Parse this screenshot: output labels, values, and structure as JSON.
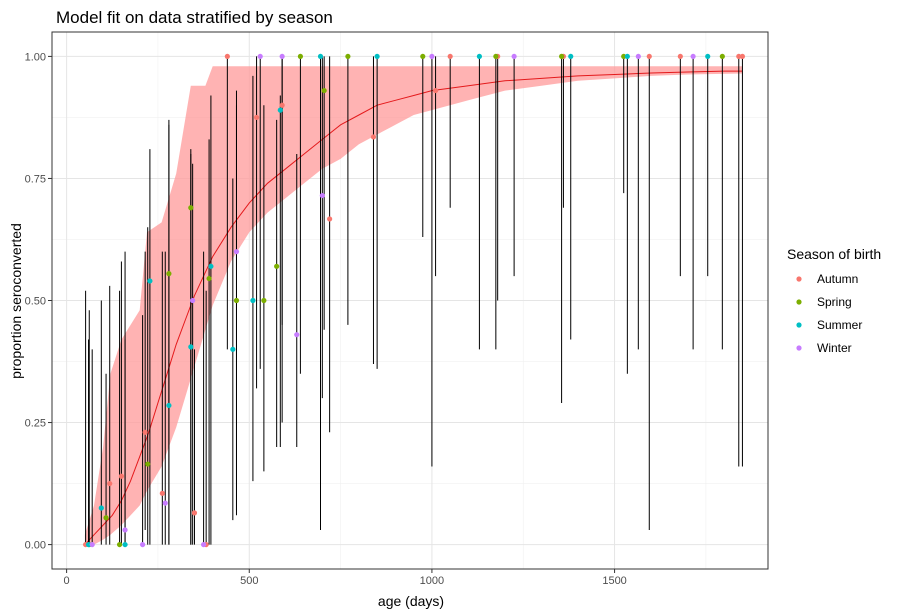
{
  "chart_data": {
    "type": "scatter",
    "title": "Model fit on data stratified by season",
    "xlabel": "age (days)",
    "ylabel": "proportion seroconverted",
    "xlim": [
      -40,
      1920
    ],
    "ylim": [
      -0.05,
      1.05
    ],
    "xticks": [
      0,
      500,
      1000,
      1500
    ],
    "xtick_labels": [
      "0",
      "500",
      "1000",
      "1500"
    ],
    "yticks": [
      0,
      0.25,
      0.5,
      0.75,
      1
    ],
    "ytick_labels": [
      "0.00",
      "0.25",
      "0.50",
      "0.75",
      "1.00"
    ],
    "grid": true,
    "legend": {
      "title": "Season of birth",
      "position": "right",
      "entries": [
        {
          "name": "Autumn",
          "color": "#F8766D"
        },
        {
          "name": "Spring",
          "color": "#7CAE00"
        },
        {
          "name": "Summer",
          "color": "#00BFC4"
        },
        {
          "name": "Winter",
          "color": "#C77CFF"
        }
      ]
    },
    "fit_line": {
      "color": "#E41A1C",
      "x": [
        50,
        75,
        100,
        125,
        150,
        175,
        200,
        225,
        250,
        275,
        300,
        325,
        350,
        375,
        400,
        450,
        500,
        550,
        600,
        650,
        700,
        750,
        800,
        850,
        900,
        950,
        1000,
        1100,
        1200,
        1300,
        1400,
        1500,
        1600,
        1700,
        1800,
        1850
      ],
      "y": [
        0.0,
        0.02,
        0.04,
        0.06,
        0.09,
        0.13,
        0.18,
        0.23,
        0.29,
        0.35,
        0.41,
        0.46,
        0.51,
        0.55,
        0.59,
        0.65,
        0.7,
        0.74,
        0.77,
        0.8,
        0.83,
        0.86,
        0.88,
        0.9,
        0.91,
        0.92,
        0.93,
        0.94,
        0.95,
        0.955,
        0.96,
        0.963,
        0.966,
        0.968,
        0.97,
        0.97
      ]
    },
    "fit_ribbon": {
      "color": "#FF9999",
      "x": [
        50,
        75,
        100,
        120,
        150,
        200,
        220,
        260,
        300,
        340,
        380,
        400,
        450,
        500,
        550,
        600,
        650,
        700,
        750,
        800,
        850,
        900,
        950,
        1000,
        1100,
        1200,
        1300,
        1400,
        1500,
        1600,
        1700,
        1850
      ],
      "lower": [
        0.0,
        0.0,
        0.01,
        0.02,
        0.04,
        0.08,
        0.11,
        0.16,
        0.24,
        0.34,
        0.44,
        0.49,
        0.58,
        0.64,
        0.68,
        0.71,
        0.74,
        0.77,
        0.79,
        0.82,
        0.84,
        0.86,
        0.88,
        0.89,
        0.91,
        0.93,
        0.94,
        0.95,
        0.955,
        0.96,
        0.963,
        0.965
      ],
      "upper": [
        0.02,
        0.08,
        0.2,
        0.35,
        0.42,
        0.48,
        0.64,
        0.66,
        0.76,
        0.94,
        0.94,
        0.98,
        0.98,
        0.98,
        0.98,
        0.98,
        0.98,
        0.98,
        0.98,
        0.98,
        0.98,
        0.98,
        0.98,
        0.98,
        0.98,
        0.98,
        0.98,
        0.98,
        0.98,
        0.98,
        0.98,
        0.98
      ]
    },
    "series": [
      {
        "name": "Autumn",
        "color": "#F8766D",
        "points": [
          {
            "x": 52,
            "y": 0.0,
            "lo": 0.0,
            "hi": 0.52
          },
          {
            "x": 118,
            "y": 0.125,
            "lo": 0.0,
            "hi": 0.53
          },
          {
            "x": 150,
            "y": 0.14,
            "lo": 0.0,
            "hi": 0.58
          },
          {
            "x": 215,
            "y": 0.23,
            "lo": 0.03,
            "hi": 0.6
          },
          {
            "x": 262,
            "y": 0.105,
            "lo": 0.0,
            "hi": 0.6
          },
          {
            "x": 350,
            "y": 0.065,
            "lo": 0.0,
            "hi": 0.4
          },
          {
            "x": 382,
            "y": 0.0,
            "lo": 0.0,
            "hi": 0.52
          },
          {
            "x": 440,
            "y": 1.0,
            "lo": 0.4,
            "hi": 1.0
          },
          {
            "x": 520,
            "y": 0.875,
            "lo": 0.32,
            "hi": 1.0
          },
          {
            "x": 590,
            "y": 0.9,
            "lo": 0.45,
            "hi": 1.0
          },
          {
            "x": 720,
            "y": 0.667,
            "lo": 0.23,
            "hi": 1.0
          },
          {
            "x": 840,
            "y": 0.835,
            "lo": 0.37,
            "hi": 1.0
          },
          {
            "x": 1010,
            "y": 0.93,
            "lo": 0.55,
            "hi": 1.0
          },
          {
            "x": 1050,
            "y": 1.0,
            "lo": 0.69,
            "hi": 1.0
          },
          {
            "x": 1180,
            "y": 1.0,
            "lo": 0.5,
            "hi": 1.0
          },
          {
            "x": 1360,
            "y": 1.0,
            "lo": 0.69,
            "hi": 1.0
          },
          {
            "x": 1595,
            "y": 1.0,
            "lo": 0.03,
            "hi": 1.0
          },
          {
            "x": 1680,
            "y": 1.0,
            "lo": 0.55,
            "hi": 1.0
          },
          {
            "x": 1840,
            "y": 1.0,
            "lo": 0.16,
            "hi": 1.0
          },
          {
            "x": 1850,
            "y": 1.0,
            "lo": 0.16,
            "hi": 1.0
          }
        ]
      },
      {
        "name": "Spring",
        "color": "#7CAE00",
        "points": [
          {
            "x": 62,
            "y": 0.0,
            "lo": 0.0,
            "hi": 0.48
          },
          {
            "x": 108,
            "y": 0.055,
            "lo": 0.0,
            "hi": 0.35
          },
          {
            "x": 145,
            "y": 0.0,
            "lo": 0.0,
            "hi": 0.52
          },
          {
            "x": 222,
            "y": 0.165,
            "lo": 0.0,
            "hi": 0.65
          },
          {
            "x": 280,
            "y": 0.555,
            "lo": 0.0,
            "hi": 0.87
          },
          {
            "x": 340,
            "y": 0.69,
            "lo": 0.0,
            "hi": 0.81
          },
          {
            "x": 390,
            "y": 0.545,
            "lo": 0.0,
            "hi": 0.83
          },
          {
            "x": 465,
            "y": 0.5,
            "lo": 0.06,
            "hi": 0.93
          },
          {
            "x": 540,
            "y": 0.5,
            "lo": 0.15,
            "hi": 0.9
          },
          {
            "x": 575,
            "y": 0.57,
            "lo": 0.2,
            "hi": 0.87
          },
          {
            "x": 640,
            "y": 1.0,
            "lo": 0.35,
            "hi": 1.0
          },
          {
            "x": 705,
            "y": 0.93,
            "lo": 0.44,
            "hi": 1.0
          },
          {
            "x": 770,
            "y": 1.0,
            "lo": 0.45,
            "hi": 1.0
          },
          {
            "x": 975,
            "y": 1.0,
            "lo": 0.63,
            "hi": 1.0
          },
          {
            "x": 1175,
            "y": 1.0,
            "lo": 0.4,
            "hi": 1.0
          },
          {
            "x": 1355,
            "y": 1.0,
            "lo": 0.29,
            "hi": 1.0
          },
          {
            "x": 1525,
            "y": 1.0,
            "lo": 0.72,
            "hi": 1.0
          },
          {
            "x": 1795,
            "y": 1.0,
            "lo": 0.4,
            "hi": 1.0
          }
        ]
      },
      {
        "name": "Summer",
        "color": "#00BFC4",
        "points": [
          {
            "x": 60,
            "y": 0.0,
            "lo": 0.0,
            "hi": 0.42
          },
          {
            "x": 95,
            "y": 0.075,
            "lo": 0.0,
            "hi": 0.5
          },
          {
            "x": 160,
            "y": 0.0,
            "lo": 0.0,
            "hi": 0.6
          },
          {
            "x": 228,
            "y": 0.54,
            "lo": 0.0,
            "hi": 0.81
          },
          {
            "x": 280,
            "y": 0.285,
            "lo": 0.0,
            "hi": 0.86
          },
          {
            "x": 340,
            "y": 0.405,
            "lo": 0.0,
            "hi": 0.8
          },
          {
            "x": 395,
            "y": 0.57,
            "lo": 0.0,
            "hi": 0.92
          },
          {
            "x": 455,
            "y": 0.4,
            "lo": 0.05,
            "hi": 0.75
          },
          {
            "x": 510,
            "y": 0.5,
            "lo": 0.13,
            "hi": 0.96
          },
          {
            "x": 585,
            "y": 0.89,
            "lo": 0.2,
            "hi": 0.92
          },
          {
            "x": 695,
            "y": 1.0,
            "lo": 0.03,
            "hi": 1.0
          },
          {
            "x": 850,
            "y": 1.0,
            "lo": 0.36,
            "hi": 1.0
          },
          {
            "x": 1130,
            "y": 1.0,
            "lo": 0.4,
            "hi": 1.0
          },
          {
            "x": 1380,
            "y": 1.0,
            "lo": 0.42,
            "hi": 1.0
          },
          {
            "x": 1535,
            "y": 1.0,
            "lo": 0.35,
            "hi": 1.0
          },
          {
            "x": 1755,
            "y": 1.0,
            "lo": 0.55,
            "hi": 1.0
          }
        ]
      },
      {
        "name": "Winter",
        "color": "#C77CFF",
        "points": [
          {
            "x": 70,
            "y": 0.0,
            "lo": 0.0,
            "hi": 0.4
          },
          {
            "x": 160,
            "y": 0.03,
            "lo": 0.0,
            "hi": 0.42
          },
          {
            "x": 208,
            "y": 0.0,
            "lo": 0.0,
            "hi": 0.47
          },
          {
            "x": 270,
            "y": 0.085,
            "lo": 0.0,
            "hi": 0.6
          },
          {
            "x": 345,
            "y": 0.5,
            "lo": 0.0,
            "hi": 0.78
          },
          {
            "x": 375,
            "y": 0.0,
            "lo": 0.0,
            "hi": 0.6
          },
          {
            "x": 465,
            "y": 0.6,
            "lo": 0.07,
            "hi": 0.9
          },
          {
            "x": 530,
            "y": 1.0,
            "lo": 0.36,
            "hi": 1.0
          },
          {
            "x": 590,
            "y": 1.0,
            "lo": 0.25,
            "hi": 1.0
          },
          {
            "x": 630,
            "y": 0.43,
            "lo": 0.2,
            "hi": 0.8
          },
          {
            "x": 700,
            "y": 0.715,
            "lo": 0.3,
            "hi": 1.0
          },
          {
            "x": 1000,
            "y": 1.0,
            "lo": 0.16,
            "hi": 1.0
          },
          {
            "x": 1225,
            "y": 1.0,
            "lo": 0.55,
            "hi": 1.0
          },
          {
            "x": 1565,
            "y": 1.0,
            "lo": 0.4,
            "hi": 1.0
          },
          {
            "x": 1715,
            "y": 1.0,
            "lo": 0.4,
            "hi": 1.0
          }
        ]
      }
    ]
  }
}
